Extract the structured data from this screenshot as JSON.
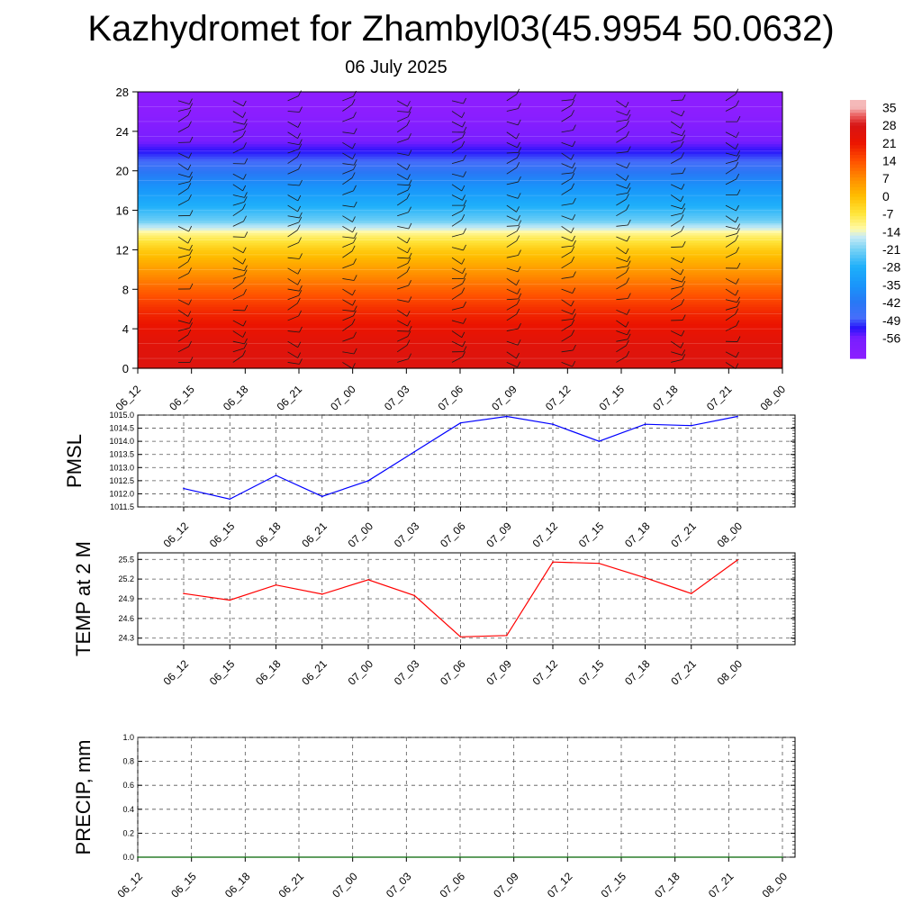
{
  "header": {
    "title": "Kazhydromet for Zhambyl03(45.9954 50.0632)",
    "subtitle": "06 July 2025"
  },
  "colors": {
    "pmsl_line": "#0000ff",
    "temp_line": "#ff0000",
    "precip_line": "#006400",
    "grid": "#555555"
  },
  "chart_data": [
    {
      "type": "heatmap",
      "name": "temperature-wind-profile",
      "title": "",
      "xlabel": "",
      "ylabel": "",
      "x_ticks": [
        "06_12",
        "06_15",
        "06_18",
        "06_21",
        "07_00",
        "07_03",
        "07_06",
        "07_09",
        "07_12",
        "07_15",
        "07_18",
        "07_21",
        "08_00"
      ],
      "ylim": [
        0,
        28
      ],
      "y_ticks": [
        0,
        4,
        8,
        12,
        16,
        20,
        24,
        28
      ],
      "colorbar_labels": [
        35,
        28,
        21,
        14,
        7,
        0,
        -7,
        -14,
        -21,
        -28,
        -35,
        -42,
        -49,
        -56
      ],
      "profile_height": [
        0,
        2,
        4,
        6,
        8,
        10,
        12,
        13.5,
        15,
        17,
        19,
        21,
        23,
        24.5,
        26,
        28
      ],
      "profile_value": [
        26,
        25,
        22,
        18,
        12,
        5,
        -2,
        -10,
        -22,
        -30,
        -38,
        -48,
        -56,
        -60,
        -64,
        -64
      ],
      "wind_barbs": "shown"
    },
    {
      "type": "line",
      "name": "PMSL",
      "ylabel": "PMSL",
      "categories": [
        "06_12",
        "06_15",
        "06_18",
        "06_21",
        "07_00",
        "07_03",
        "07_06",
        "07_09",
        "07_12",
        "07_15",
        "07_18",
        "07_21",
        "08_00"
      ],
      "values": [
        1012.2,
        1011.8,
        1012.7,
        1011.9,
        1012.5,
        1013.6,
        1014.7,
        1014.95,
        1014.65,
        1014.0,
        1014.65,
        1014.6,
        1014.95
      ],
      "ylim": [
        1011.5,
        1015.0
      ],
      "y_ticks": [
        "1011.5",
        "1012.0",
        "1012.5",
        "1013.0",
        "1013.5",
        "1014.0",
        "1014.5",
        "1015.0"
      ],
      "grid": "dashed"
    },
    {
      "type": "line",
      "name": "TEMP at 2 M",
      "ylabel": "TEMP at 2 M",
      "categories": [
        "06_12",
        "06_15",
        "06_18",
        "06_21",
        "07_00",
        "07_03",
        "07_06",
        "07_09",
        "07_12",
        "07_15",
        "07_18",
        "07_21",
        "08_00"
      ],
      "values": [
        24.98,
        24.88,
        25.11,
        24.97,
        25.19,
        24.95,
        24.32,
        24.34,
        25.46,
        25.44,
        25.22,
        24.98,
        25.49
      ],
      "ylim": [
        24.2,
        25.6
      ],
      "y_ticks": [
        "24.3",
        "24.6",
        "24.9",
        "25.2",
        "25.5"
      ],
      "grid": "dashed"
    },
    {
      "type": "line",
      "name": "PRECIP, mm",
      "ylabel": "PRECIP, mm",
      "categories": [
        "06_12",
        "06_15",
        "06_18",
        "06_21",
        "07_00",
        "07_03",
        "07_06",
        "07_09",
        "07_12",
        "07_15",
        "07_18",
        "07_21",
        "08_00"
      ],
      "values": [
        0,
        0,
        0,
        0,
        0,
        0,
        0,
        0,
        0,
        0,
        0,
        0,
        0
      ],
      "ylim": [
        0,
        1.0
      ],
      "y_ticks": [
        "0.0",
        "0.2",
        "0.4",
        "0.6",
        "0.8",
        "1.0"
      ],
      "grid": "dashed"
    }
  ]
}
